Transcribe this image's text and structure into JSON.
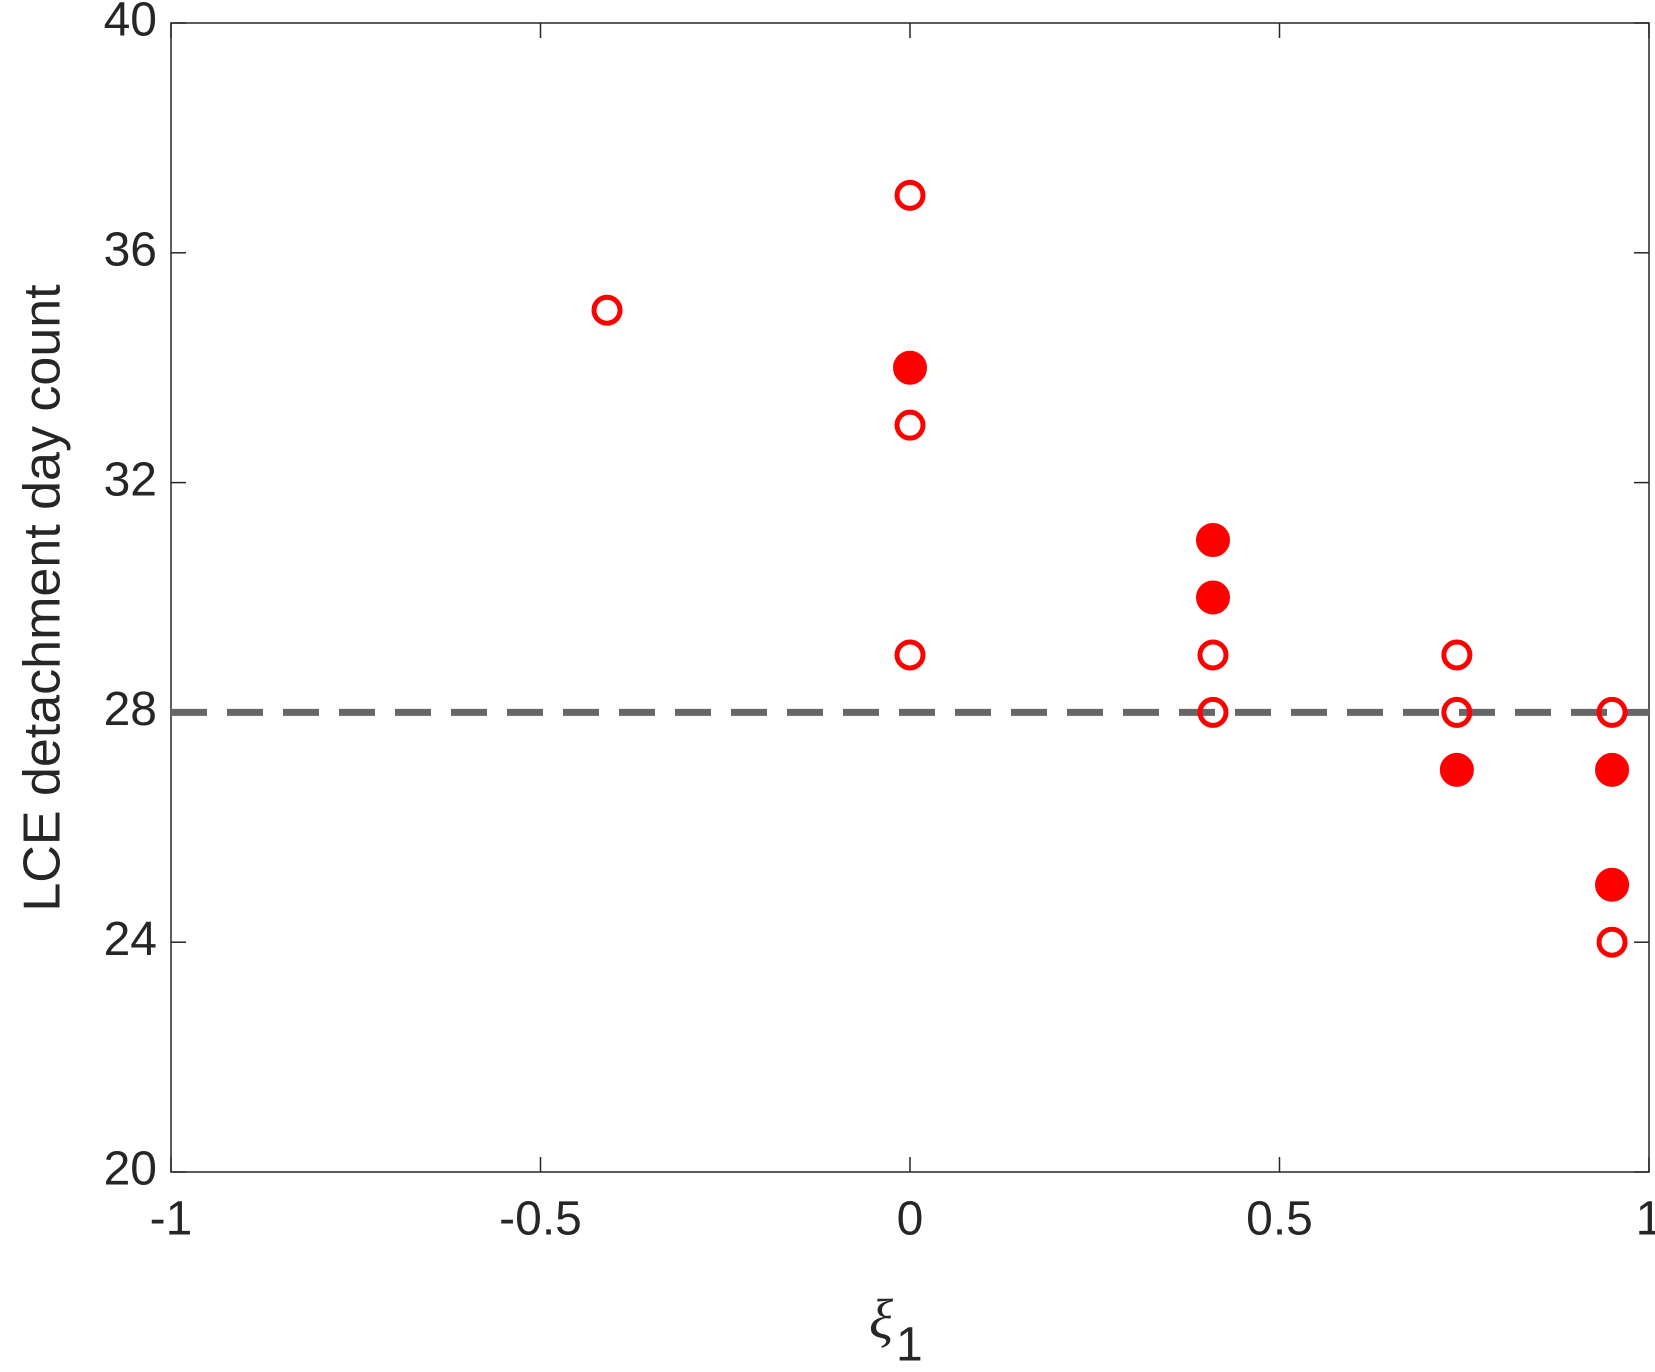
{
  "chart_data": {
    "type": "scatter",
    "ylabel": "LCE detachment day count",
    "xlabel": {
      "symbol": "ξ",
      "subscript": "1"
    },
    "xlim": [
      -1,
      1
    ],
    "xticks": [
      -1,
      -0.5,
      0,
      0.5,
      1
    ],
    "ylim": [
      20,
      40
    ],
    "yticks": [
      20,
      24,
      28,
      32,
      36,
      40
    ],
    "reference_line": {
      "y": 28,
      "color": "#666666",
      "style": "dashed"
    },
    "series": [
      {
        "marker": "open",
        "color": "#ff0000",
        "x": [
          -0.41,
          0,
          0,
          0,
          0.41,
          0.41,
          0.74,
          0.74,
          0.95,
          0.95
        ],
        "values": [
          35,
          37,
          33,
          29,
          29,
          28,
          29,
          28,
          28,
          24
        ]
      },
      {
        "marker": "filled",
        "color": "#ff0000",
        "x": [
          0,
          0.41,
          0.41,
          0.74,
          0.95,
          0.95
        ],
        "values": [
          34,
          31,
          30,
          27,
          27,
          25
        ]
      }
    ]
  }
}
